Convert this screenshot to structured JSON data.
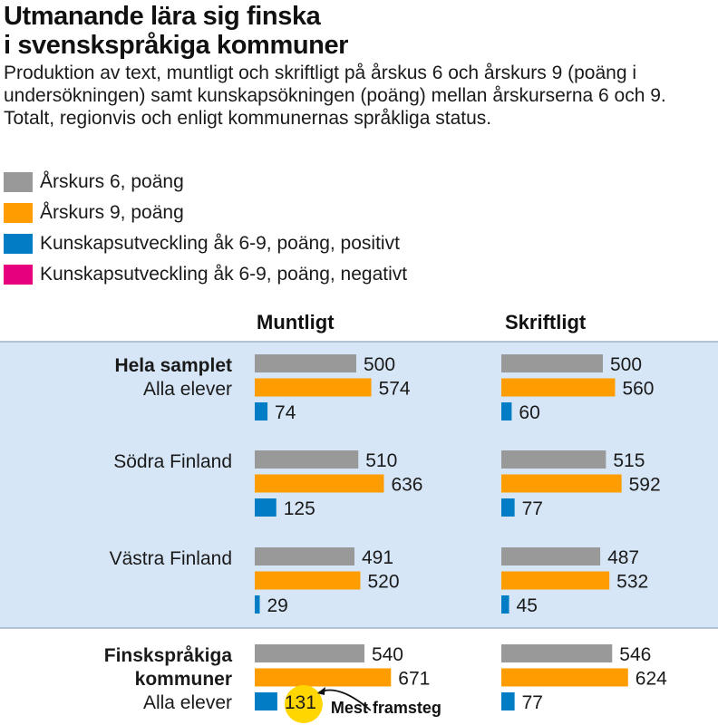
{
  "title_lines": [
    "Utmanande lära sig finska",
    "i svenskspråkiga kommuner"
  ],
  "subtitle": "Produktion av text, muntligt och skriftligt på årskus 6 och årskurs 9 (poäng i undersökningen) samt  kunskapsökningen (poäng) mellan årskurserna 6 och 9. Totalt, regionvis och enligt kommunernas språkliga status.",
  "legend": [
    {
      "label": "Årskurs 6, poäng",
      "color": "#999999"
    },
    {
      "label": "Årskurs 9, poäng",
      "color": "#ff9c00"
    },
    {
      "label": "Kunskapsutveckling åk 6-9, poäng, positivt",
      "color": "#007dc5"
    },
    {
      "label": "Kunskapsutveckling åk 6-9, poäng, negativt",
      "color": "#e6007e"
    }
  ],
  "columns": [
    "Muntligt",
    "Skriftligt"
  ],
  "callout_text": "Mest framsteg",
  "colors": {
    "grade6": "#999999",
    "grade9": "#ff9c00",
    "positive": "#007dc5",
    "negative": "#e6007e",
    "band": "#d6e6f6",
    "band_line": "#9fb4c8",
    "highlight": "#ffd600"
  },
  "chart_data": {
    "type": "bar",
    "series": [
      {
        "name": "Årskurs 6, poäng"
      },
      {
        "name": "Årskurs 9, poäng"
      },
      {
        "name": "Kunskapsutveckling åk 6-9, poäng"
      }
    ],
    "groups": [
      {
        "label_lines": [
          "Hela samplet",
          "Alla elever"
        ],
        "bold_lines": 1,
        "muntligt": [
          500,
          574,
          74
        ],
        "skriftligt": [
          500,
          560,
          60
        ]
      },
      {
        "label_lines": [
          "Södra Finland"
        ],
        "bold_lines": 0,
        "muntligt": [
          510,
          636,
          125
        ],
        "skriftligt": [
          515,
          592,
          77
        ]
      },
      {
        "label_lines": [
          "Västra Finland"
        ],
        "bold_lines": 0,
        "muntligt": [
          491,
          520,
          29
        ],
        "skriftligt": [
          487,
          532,
          45
        ]
      },
      {
        "label_lines": [
          "Finskspråkiga",
          "kommuner",
          "Alla elever"
        ],
        "bold_lines": 2,
        "muntligt": [
          540,
          671,
          131
        ],
        "skriftligt": [
          546,
          624,
          77
        ]
      }
    ],
    "highlight": {
      "group": 3,
      "column": "muntligt",
      "bar": 2
    }
  }
}
